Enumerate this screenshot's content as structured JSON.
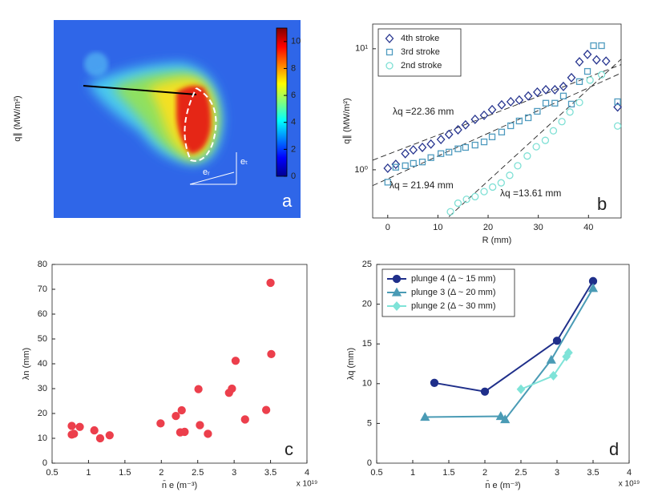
{
  "chart_data": [
    {
      "type": "heatmap",
      "ylabel": "q∥ (MW/m²)",
      "clim": [
        0,
        11
      ],
      "cticks": [
        0,
        2,
        4,
        6,
        8,
        10
      ],
      "annotations": [
        "eᵣ",
        "eₜ"
      ],
      "label": "a"
    },
    {
      "type": "scatter",
      "xlabel": "R (mm)",
      "ylabel": "q∥ (MW/m²)",
      "label": "b",
      "log_y": true,
      "legend": "upper left",
      "xlim": [
        -3,
        46.5
      ],
      "xticks": [
        0,
        10,
        20,
        30,
        40
      ],
      "ylim": [
        0.4,
        16
      ],
      "yticks": [
        {
          "value": 1,
          "label": "10⁰"
        },
        {
          "value": 10,
          "label": "10¹"
        }
      ],
      "series": [
        {
          "name": "4th stroke",
          "color": "#27358f",
          "marker": "diamond",
          "filled": false,
          "x": [
            0,
            1.6,
            3.5,
            5.1,
            6.9,
            8.6,
            10.6,
            12.2,
            14,
            15.5,
            17.4,
            19.2,
            20.8,
            22.7,
            24.5,
            26.2,
            28,
            29.8,
            31.5,
            33.3,
            35,
            36.6,
            38.2,
            39.8,
            41.6,
            43.5,
            45.8
          ],
          "values": [
            1.03,
            1.11,
            1.36,
            1.46,
            1.53,
            1.63,
            1.78,
            1.96,
            2.14,
            2.35,
            2.61,
            2.82,
            3.14,
            3.44,
            3.65,
            3.77,
            4.07,
            4.38,
            4.59,
            4.59,
            4.88,
            5.77,
            7.8,
            8.98,
            8.09,
            7.9,
            3.3
          ]
        },
        {
          "name": "3rd stroke",
          "color": "#4f9bbf",
          "marker": "square",
          "filled": false,
          "x": [
            0,
            1.6,
            3.5,
            5.1,
            6.9,
            8.6,
            10.6,
            12.2,
            14,
            15.5,
            17.4,
            19.2,
            20.8,
            22.7,
            24.5,
            26.2,
            28,
            29.8,
            31.5,
            33.3,
            35,
            36.6,
            38.2,
            39.8,
            41,
            42.6,
            45.8
          ],
          "values": [
            0.79,
            1.05,
            1.08,
            1.13,
            1.16,
            1.26,
            1.36,
            1.4,
            1.49,
            1.53,
            1.6,
            1.7,
            1.87,
            2.05,
            2.31,
            2.53,
            2.69,
            3.04,
            3.55,
            3.55,
            4.07,
            3.49,
            5.35,
            6.5,
            10.6,
            10.6,
            3.65
          ]
        },
        {
          "name": "2nd stroke",
          "color": "#7fe0d5",
          "marker": "circle",
          "filled": false,
          "x": [
            12.5,
            14,
            15.7,
            17.4,
            19.2,
            20.9,
            22.6,
            24.3,
            25.9,
            27.8,
            29.6,
            31.4,
            33,
            34.7,
            36.3,
            38.2,
            40.3,
            42.6,
            45.8
          ],
          "values": [
            0.45,
            0.53,
            0.57,
            0.6,
            0.66,
            0.72,
            0.78,
            0.9,
            1.08,
            1.3,
            1.55,
            1.75,
            2.1,
            2.5,
            3.0,
            3.6,
            5.5,
            6.1,
            2.3
          ]
        }
      ],
      "fits": [
        {
          "x": [
            -3,
            46.5
          ],
          "y": [
            1.2,
            7.4
          ]
        },
        {
          "x": [
            -3,
            46.5
          ],
          "y": [
            0.74,
            6.3
          ]
        },
        {
          "x": [
            12.2,
            46.5
          ],
          "y": [
            0.41,
            8.2
          ]
        }
      ],
      "annotations": [
        "λq =22.36 mm",
        "λq = 21.94 mm",
        "λq =13.61 mm"
      ]
    },
    {
      "type": "scatter",
      "xlabel": "n̄ e (m⁻³)",
      "ylabel": "λn (mm)",
      "label": "c",
      "exponent": "x 10¹⁹",
      "xlim": [
        0.5,
        4
      ],
      "xticks": [
        0.5,
        1,
        1.5,
        2,
        2.5,
        3,
        3.5,
        4
      ],
      "ylim": [
        0,
        80
      ],
      "yticks": [
        0,
        10,
        20,
        30,
        40,
        50,
        60,
        70,
        80
      ],
      "series": [
        {
          "color": "#ec3f4c",
          "marker": "circle",
          "filled": true,
          "x": [
            0.77,
            0.77,
            0.8,
            0.88,
            1.08,
            1.16,
            1.29,
            1.99,
            2.2,
            2.26,
            2.28,
            2.32,
            2.51,
            2.53,
            2.64,
            2.93,
            2.97,
            3.02,
            3.15,
            3.44,
            3.5,
            3.51
          ],
          "values": [
            15,
            11.5,
            11.8,
            14.6,
            13.2,
            10,
            11.2,
            16,
            19,
            12.4,
            21.3,
            12.6,
            29.8,
            15.3,
            11.8,
            28.3,
            30,
            41.2,
            17.6,
            21.4,
            72.6,
            43.9
          ]
        }
      ]
    },
    {
      "type": "line",
      "xlabel": "n̄ e (m⁻³)",
      "ylabel": "λq (mm)",
      "label": "d",
      "exponent": "x 10¹⁹",
      "legend": "upper left",
      "xlim": [
        0.5,
        4
      ],
      "xticks": [
        0.5,
        1,
        1.5,
        2,
        2.5,
        3,
        3.5,
        4
      ],
      "ylim": [
        0,
        25
      ],
      "yticks": [
        0,
        5,
        10,
        15,
        20,
        25
      ],
      "series": [
        {
          "name": "plunge 4 (Δ  ~  15 mm)",
          "color": "#1f2f8a",
          "marker": "circle",
          "filled": true,
          "x": [
            1.3,
            2.0,
            3.0,
            3.5
          ],
          "values": [
            10.1,
            9.0,
            15.4,
            22.9
          ]
        },
        {
          "name": "plunge 3 (Δ  ~  20 mm)",
          "color": "#4a9bb5",
          "marker": "triangle",
          "filled": true,
          "x": [
            1.17,
            2.22,
            2.28,
            2.92,
            3.5
          ],
          "values": [
            5.8,
            5.9,
            5.5,
            13.0,
            22.0
          ]
        },
        {
          "name": "plunge 2 (Δ  ~  30 mm)",
          "color": "#7fe3d8",
          "marker": "diamond",
          "filled": true,
          "x": [
            2.5,
            2.95,
            3.13,
            3.16
          ],
          "values": [
            9.3,
            11.0,
            13.4,
            13.9
          ]
        }
      ]
    }
  ]
}
